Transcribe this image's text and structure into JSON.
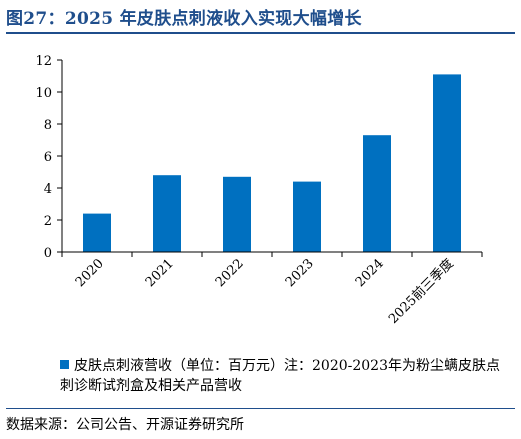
{
  "header": {
    "title": "图27：2025 年皮肤点刺液收入实现大幅增长"
  },
  "legend": {
    "text": "皮肤点刺液营收（单位：百万元）注：2020-2023年为粉尘螨皮肤点刺诊断试剂盒及相关产品营收"
  },
  "footer": {
    "source": "数据来源：公司公告、开源证券研究所"
  },
  "colors": {
    "bar": "#0070c0",
    "title": "#1f4e8c"
  },
  "chart_data": {
    "type": "bar",
    "categories": [
      "2020",
      "2021",
      "2022",
      "2023",
      "2024",
      "2025前三季度"
    ],
    "series": [
      {
        "name": "皮肤点刺液营收（单位：百万元）",
        "values": [
          2.4,
          4.8,
          4.7,
          4.4,
          7.3,
          11.1
        ]
      }
    ],
    "ylim": [
      0,
      12
    ],
    "yticks": [
      0,
      2,
      4,
      6,
      8,
      10,
      12
    ],
    "grid": false,
    "legend_position": "bottom",
    "note": "注：2020-2023年为粉尘螨皮肤点刺诊断试剂盒及相关产品营收"
  }
}
